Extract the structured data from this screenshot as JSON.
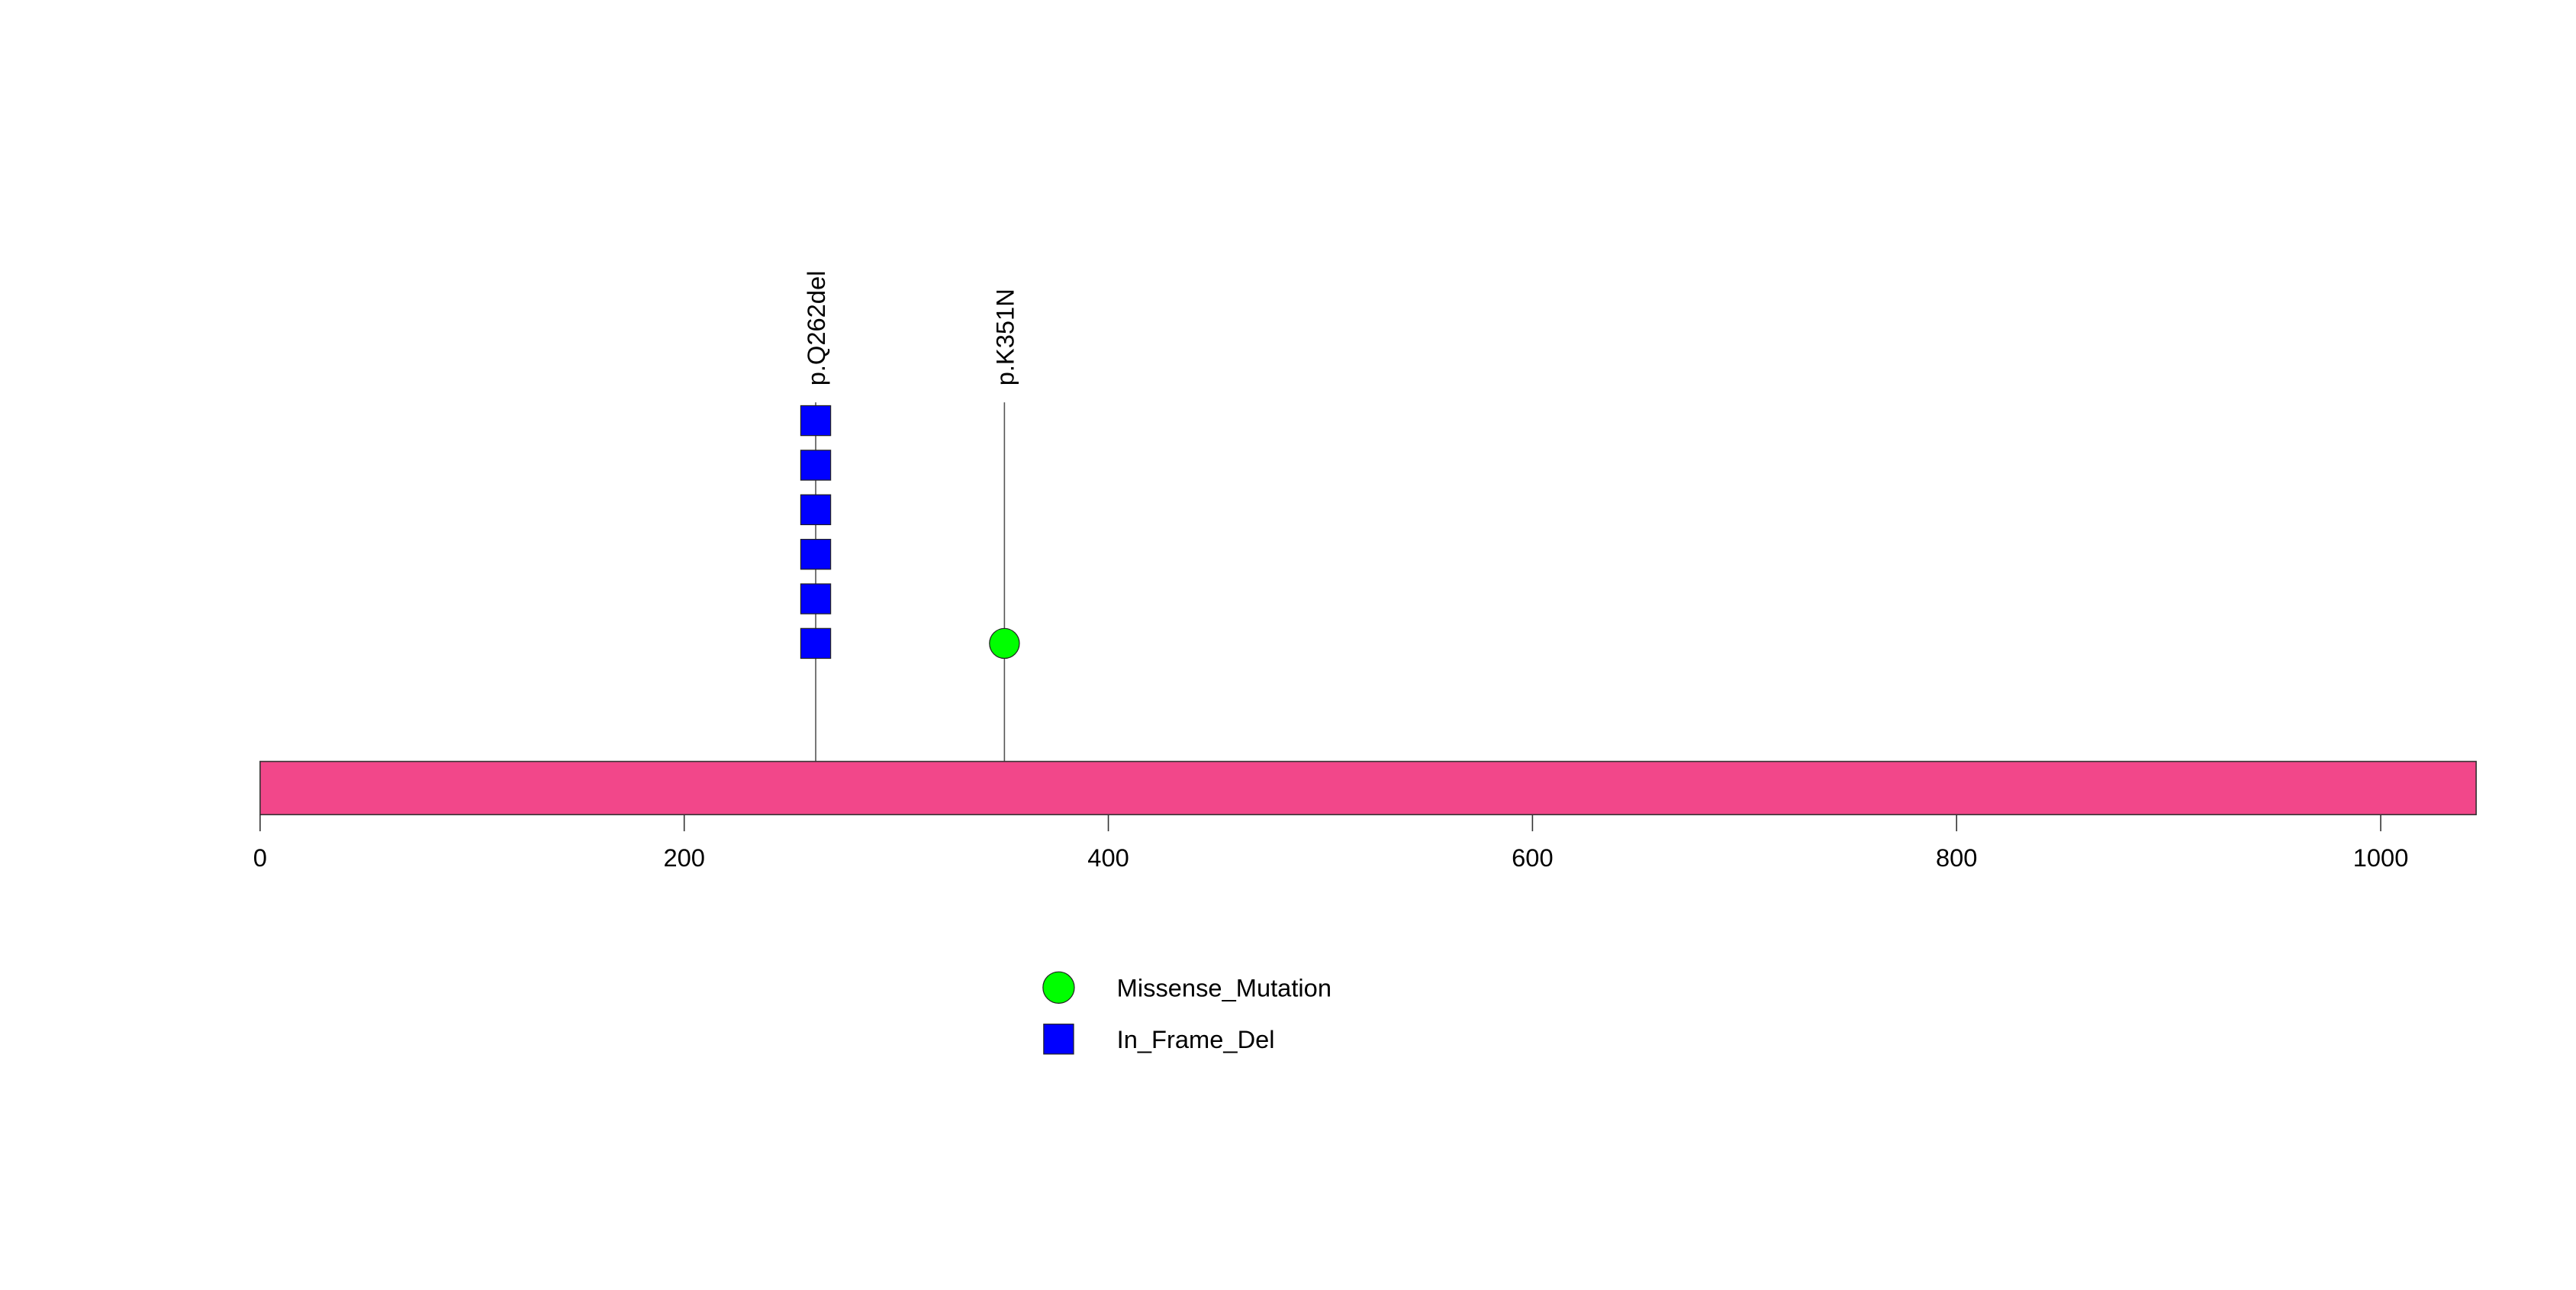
{
  "chart_data": {
    "type": "scatter",
    "x_axis": {
      "range": [
        0,
        1045
      ],
      "ticks": [
        0,
        200,
        400,
        600,
        800,
        1000
      ]
    },
    "protein": {
      "length": 1045,
      "color": "#f2478a"
    },
    "mutations": [
      {
        "label": "p.Q262del",
        "position": 262,
        "type": "In_Frame_Del",
        "count": 6
      },
      {
        "label": "p.K351N",
        "position": 351,
        "type": "Missense_Mutation",
        "count": 1
      }
    ],
    "legend": {
      "placement": "bottom-center",
      "entries": [
        {
          "label": "Missense_Mutation",
          "shape": "circle",
          "color": "#00ff00"
        },
        {
          "label": "In_Frame_Del",
          "shape": "square",
          "color": "#0000ff"
        }
      ]
    },
    "grid": false,
    "title": "",
    "xlabel": "",
    "ylabel": ""
  }
}
